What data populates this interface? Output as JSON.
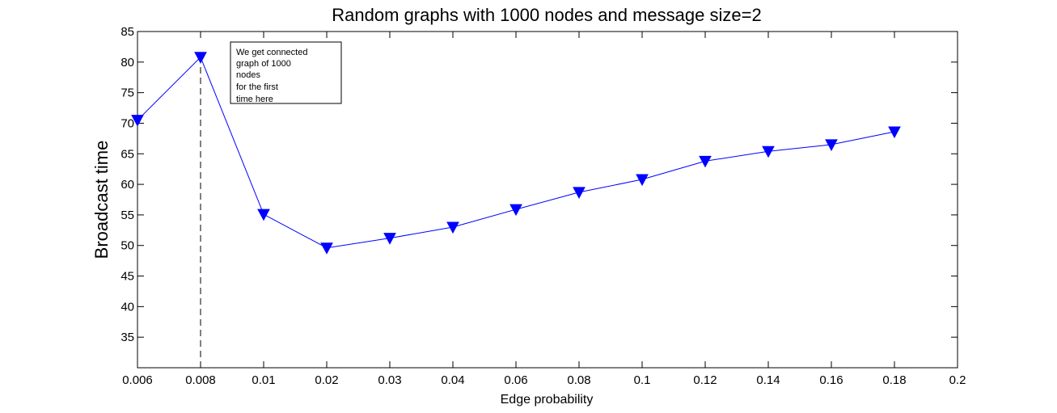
{
  "chart_data": {
    "type": "line",
    "title": "Random graphs with 1000 nodes and message size=2",
    "xlabel": "Edge probability",
    "ylabel": "Broadcast time",
    "x_ticks": [
      "0.006",
      "0.008",
      "0.01",
      "0.02",
      "0.03",
      "0.04",
      "0.06",
      "0.08",
      "0.1",
      "0.12",
      "0.14",
      "0.16",
      "0.18",
      "0.2"
    ],
    "ylim": [
      30,
      85
    ],
    "y_ticks": [
      35,
      40,
      45,
      50,
      55,
      60,
      65,
      70,
      75,
      80,
      85
    ],
    "grid": false,
    "series": [
      {
        "color": "#0000ff",
        "marker": "triangle-down",
        "x": [
          "0.006",
          "0.008",
          "0.01",
          "0.02",
          "0.03",
          "0.04",
          "0.06",
          "0.08",
          "0.1",
          "0.12",
          "0.14",
          "0.16",
          "0.18"
        ],
        "values": [
          70.5,
          80.8,
          55.1,
          49.6,
          51.2,
          53.0,
          55.9,
          58.7,
          60.8,
          63.8,
          65.4,
          66.5,
          68.6
        ]
      }
    ],
    "reference_line": {
      "x": "0.008",
      "style": "dashed",
      "color": "#000000"
    },
    "annotation": {
      "lines": [
        "We get connected",
        "graph of 1000",
        "nodes",
        "for the first",
        "time here"
      ]
    }
  }
}
